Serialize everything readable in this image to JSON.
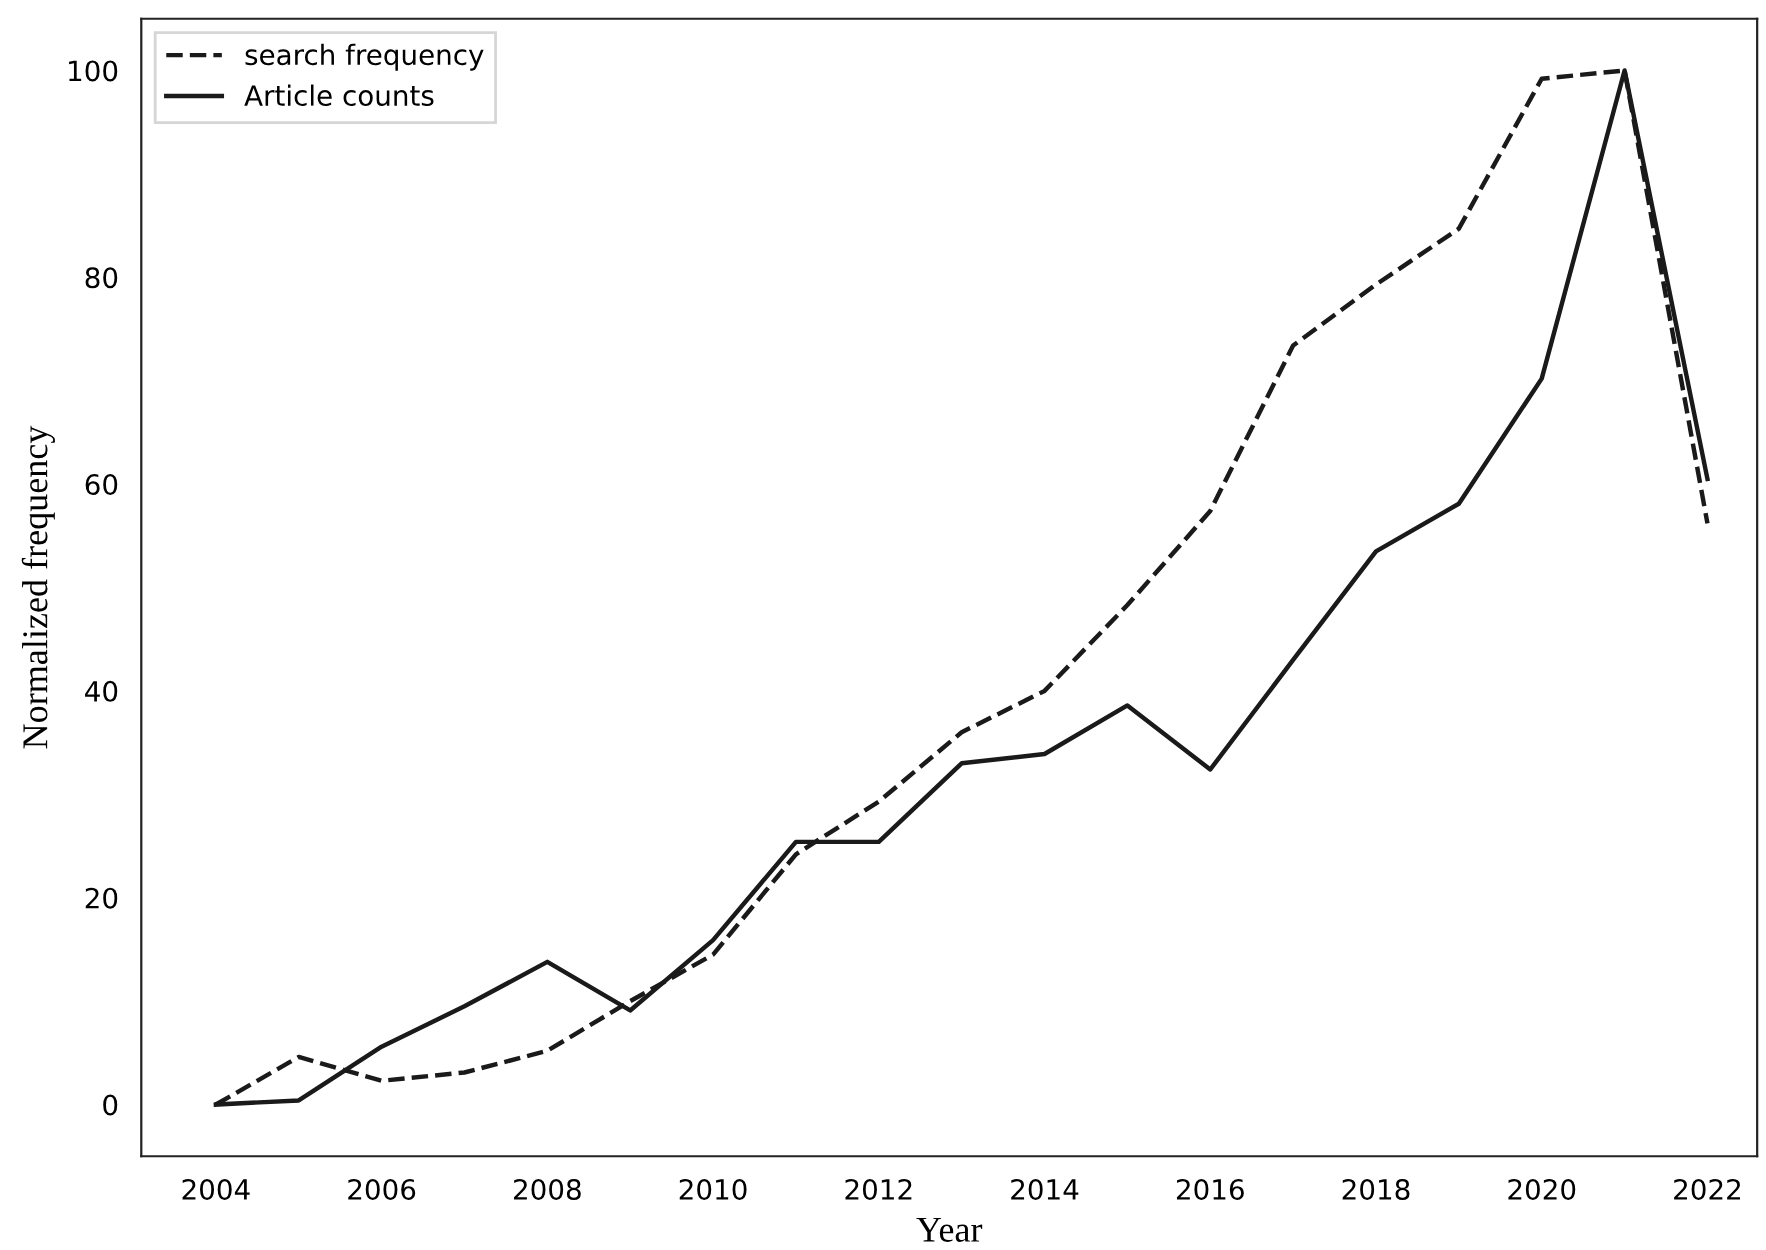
{
  "chart_data": {
    "type": "line",
    "xlabel": "Year",
    "ylabel": "Normalized frequency",
    "x": [
      2004,
      2005,
      2006,
      2007,
      2008,
      2009,
      2010,
      2011,
      2012,
      2013,
      2014,
      2015,
      2016,
      2017,
      2018,
      2019,
      2020,
      2021,
      2022
    ],
    "series": [
      {
        "name": "search frequency",
        "color": "#1a1a1a",
        "line_style": "dashed",
        "values": [
          0,
          4.6,
          2.3,
          3.1,
          5.2,
          10,
          14.5,
          24.2,
          29.3,
          36,
          40,
          48.3,
          57.4,
          73.4,
          79.3,
          84.7,
          99.2,
          100,
          56.2
        ]
      },
      {
        "name": "Article counts",
        "color": "#1a1a1a",
        "line_style": "solid",
        "values": [
          0,
          0.4,
          5.6,
          9.5,
          13.8,
          9.1,
          15.9,
          25.4,
          25.4,
          33,
          33.9,
          38.6,
          32.4,
          43,
          53.5,
          58.1,
          70.2,
          100,
          60.5
        ]
      }
    ],
    "xlim": [
      2003.1,
      2022.6
    ],
    "ylim": [
      -5,
      105
    ],
    "xticks": [
      2004,
      2006,
      2008,
      2010,
      2012,
      2014,
      2016,
      2018,
      2020,
      2022
    ],
    "yticks": [
      0,
      20,
      40,
      60,
      80,
      100
    ],
    "grid": false,
    "legend": "top left",
    "marker": "none"
  }
}
